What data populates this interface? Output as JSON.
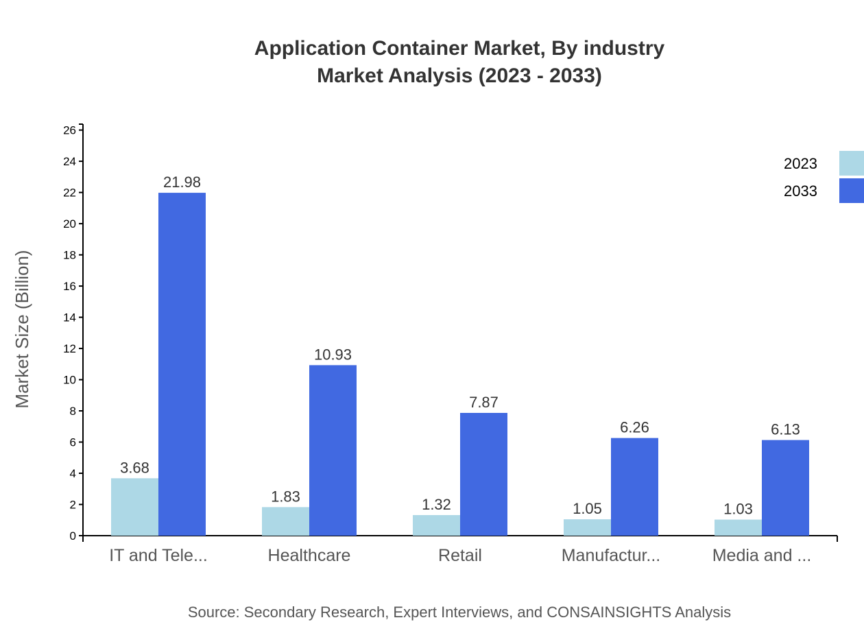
{
  "chart_data": {
    "type": "bar",
    "title": "Application Container Market, By industry",
    "subtitle": "Market Analysis (2023 - 2033)",
    "xlabel": "",
    "ylabel": "Market Size (Billion)",
    "categories": [
      "IT and Tele...",
      "Healthcare",
      "Retail",
      "Manufactur...",
      "Media and ..."
    ],
    "series": [
      {
        "name": "2023",
        "color": "#add8e6",
        "values": [
          3.68,
          1.83,
          1.32,
          1.05,
          1.03
        ]
      },
      {
        "name": "2033",
        "color": "#4169e1",
        "values": [
          21.98,
          10.93,
          7.87,
          6.26,
          6.13
        ]
      }
    ],
    "ylim": [
      0,
      26.38
    ],
    "yticks": [
      0,
      2,
      4,
      6,
      8,
      10,
      12,
      14,
      16,
      18,
      20,
      22,
      24,
      26
    ],
    "grid": false,
    "legend": "top-right",
    "source": "Source: Secondary Research, Expert Interviews, and CONSAINSIGHTS Analysis"
  }
}
